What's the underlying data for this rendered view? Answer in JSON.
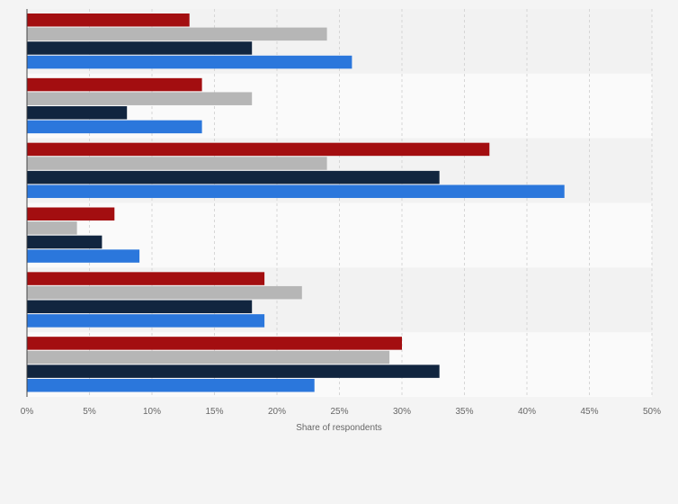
{
  "chart_data": {
    "type": "bar",
    "orientation": "horizontal",
    "categories": [
      "",
      "",
      "",
      "",
      "",
      ""
    ],
    "series": [
      {
        "color": "#a30e10",
        "values": [
          13,
          14,
          37,
          7,
          19,
          30
        ]
      },
      {
        "color": "#b6b6b6",
        "values": [
          24,
          18,
          24,
          4,
          22,
          29
        ]
      },
      {
        "color": "#11253f",
        "values": [
          18,
          8,
          33,
          6,
          18,
          33
        ]
      },
      {
        "color": "#2b77dc",
        "values": [
          26,
          14,
          43,
          9,
          19,
          23
        ]
      }
    ],
    "xlabel": "Share of respondents",
    "xlim": [
      0,
      50
    ],
    "x_ticks": [
      "0%",
      "5%",
      "10%",
      "15%",
      "20%",
      "25%",
      "30%",
      "35%",
      "40%",
      "45%",
      "50%"
    ],
    "grid": true,
    "legend": "none"
  }
}
